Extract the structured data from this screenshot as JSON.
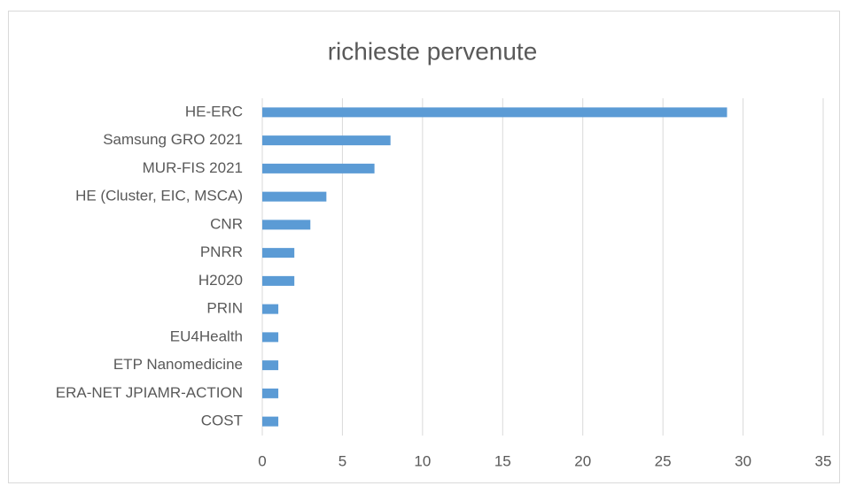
{
  "chart_data": {
    "type": "barh",
    "title": "richieste pervenute",
    "categories": [
      "HE-ERC",
      "Samsung GRO 2021",
      "MUR-FIS 2021",
      "HE (Cluster, EIC, MSCA)",
      "CNR",
      "PNRR",
      "H2020",
      "PRIN",
      "EU4Health",
      "ETP Nanomedicine",
      "ERA-NET JPIAMR-ACTION",
      "COST"
    ],
    "values": [
      29,
      8,
      7,
      4,
      3,
      2,
      2,
      1,
      1,
      1,
      1,
      1
    ],
    "color": "#5b9bd5",
    "xlim": [
      0,
      35
    ],
    "xticks": [
      0,
      5,
      10,
      15,
      20,
      25,
      30,
      35
    ],
    "grid": true
  }
}
